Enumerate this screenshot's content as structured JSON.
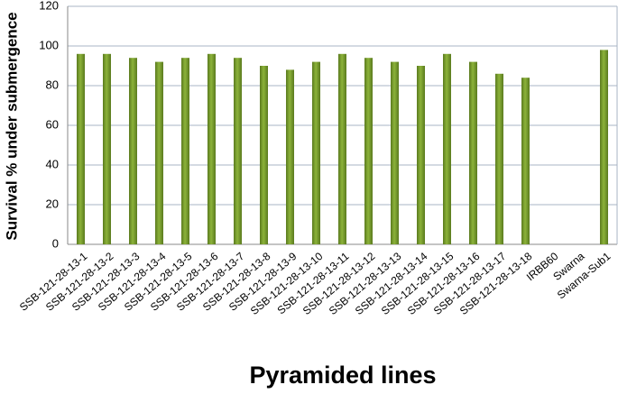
{
  "chart_data": {
    "type": "bar",
    "x_label": "Pyramided lines",
    "y_label": "Survival % under submergence",
    "categories": [
      "SSB-121-28-13-1",
      "SSB-121-28-13-2",
      "SSB-121-28-13-3",
      "SSB-121-28-13-4",
      "SSB-121-28-13-5",
      "SSB-121-28-13-6",
      "SSB-121-28-13-7",
      "SSB-121-28-13-8",
      "SSB-121-28-13-9",
      "SSB-121-28-13-10",
      "SSB-121-28-13-11",
      "SSB-121-28-13-12",
      "SSB-121-28-13-13",
      "SSB-121-28-13-14",
      "SSB-121-28-13-15",
      "SSB-121-28-13-16",
      "SSB-121-28-13-17",
      "SSB-121-28-13-18",
      "IRBB60",
      "Swarna",
      "Swarna-Sub1"
    ],
    "values": [
      96,
      96,
      94,
      92,
      94,
      96,
      94,
      90,
      88,
      92,
      96,
      94,
      92,
      90,
      96,
      92,
      86,
      84,
      0,
      0,
      98
    ],
    "color": "#8cb33a",
    "ylim": [
      0,
      120
    ],
    "yticks": [
      0,
      20,
      40,
      60,
      80,
      100,
      120
    ],
    "grid": true
  }
}
